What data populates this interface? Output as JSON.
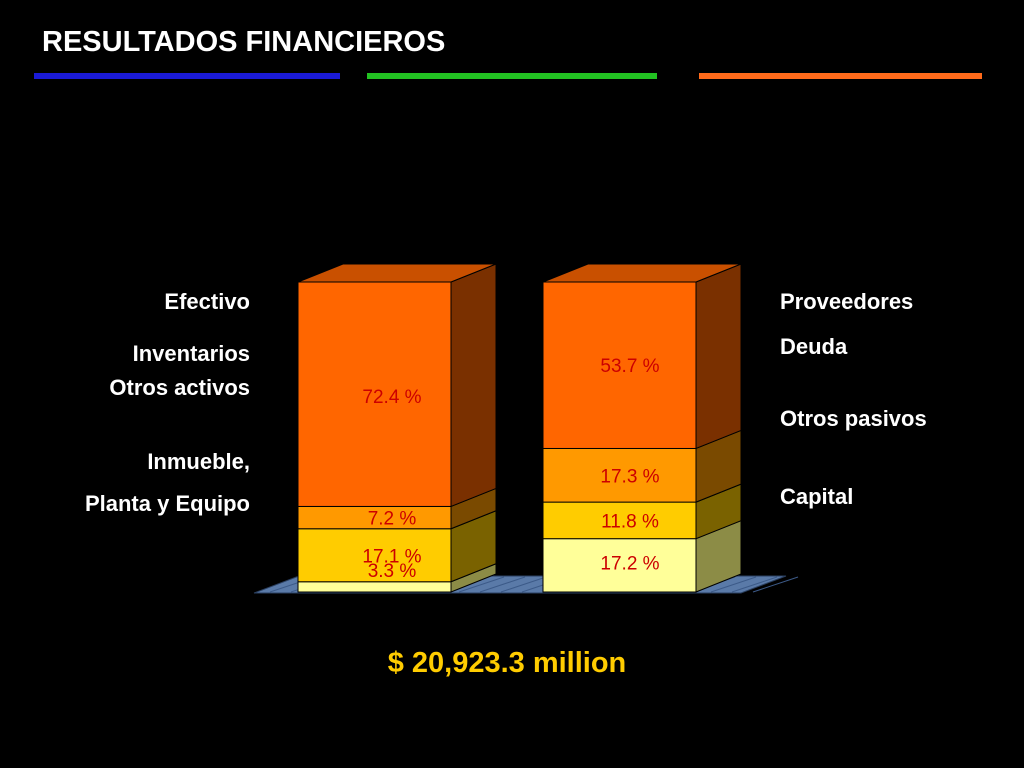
{
  "header": {
    "title": "RESULTADOS FINANCIEROS",
    "rule_colors": [
      "#1a1ad6",
      "#22c222",
      "#ff6a1a"
    ]
  },
  "chart_data": {
    "type": "bar",
    "stacked": true,
    "three_d": true,
    "categories": [
      "",
      ""
    ],
    "series_left": [
      {
        "name": "Efectivo",
        "value": 3.3,
        "label": "3.3  %",
        "color": "#ffff99",
        "side_color": "#8c8c46",
        "top_color": "#c8c87a"
      },
      {
        "name": "Inventarios",
        "value": 17.1,
        "label": "17.1 %",
        "color": "#ffcc00",
        "side_color": "#7a6200",
        "top_color": "#c9a300"
      },
      {
        "name": "Otros activos",
        "value": 7.2,
        "label": "7.2  %",
        "color": "#ff9900",
        "side_color": "#7a4a00",
        "top_color": "#c97a00"
      },
      {
        "name": "Inmueble, Planta y Equipo",
        "value": 72.4,
        "label": "72.4 %",
        "color": "#ff6600",
        "side_color": "#7a3000",
        "top_color": "#c95000"
      }
    ],
    "series_right": [
      {
        "name": "Proveedores",
        "value": 17.2,
        "label": "17.2 %",
        "color": "#ffff99",
        "side_color": "#8c8c46",
        "top_color": "#c8c87a"
      },
      {
        "name": "Deuda",
        "value": 11.8,
        "label": "11.8 %",
        "color": "#ffcc00",
        "side_color": "#7a6200",
        "top_color": "#c9a300"
      },
      {
        "name": "Otros pasivos",
        "value": 17.3,
        "label": "17.3 %",
        "color": "#ff9900",
        "side_color": "#7a4a00",
        "top_color": "#c97a00"
      },
      {
        "name": "Capital",
        "value": 53.7,
        "label": "53.7 %",
        "color": "#ff6600",
        "side_color": "#7a3000",
        "top_color": "#c95000"
      }
    ],
    "value_label_color": "#cc0000",
    "floor_color": "#5a7aa8",
    "ylim": [
      0,
      100
    ],
    "legend": "sides"
  },
  "labels_left": {
    "efectivo": "Efectivo",
    "inventarios": "Inventarios",
    "otros_activos": "Otros activos",
    "inmueble_1": "Inmueble,",
    "inmueble_2": "Planta y Equipo"
  },
  "labels_right": {
    "proveedores": "Proveedores",
    "deuda": "Deuda",
    "otros_pasivos": "Otros pasivos",
    "capital": "Capital"
  },
  "total": "$ 20,923.3 million"
}
